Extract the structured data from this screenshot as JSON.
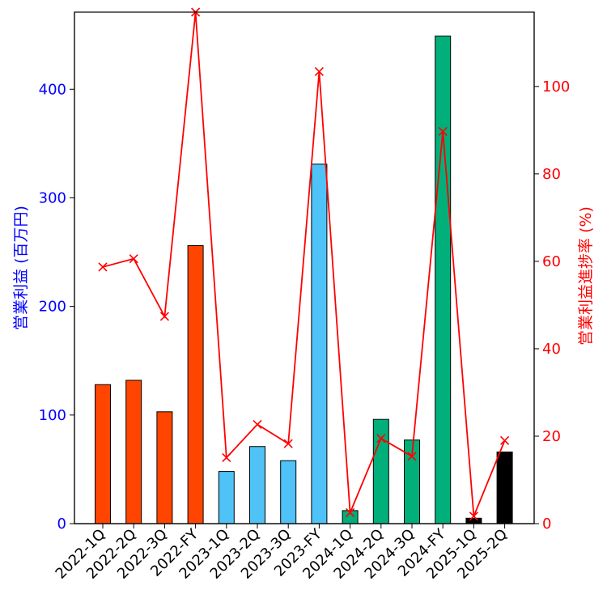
{
  "chart_data": {
    "type": "bar",
    "categories": [
      "2022-1Q",
      "2022-2Q",
      "2022-3Q",
      "2022-FY",
      "2023-1Q",
      "2023-2Q",
      "2023-3Q",
      "2023-FY",
      "2024-1Q",
      "2024-2Q",
      "2024-3Q",
      "2024-FY",
      "2025-1Q",
      "2025-2Q"
    ],
    "series": [
      {
        "axis": "left",
        "type": "bar",
        "values": [
          128,
          132,
          103,
          256,
          48,
          71,
          58,
          331,
          12,
          96,
          77,
          449,
          5,
          66
        ],
        "colors": [
          "#ff4500",
          "#ff4500",
          "#ff4500",
          "#ff4500",
          "#4fc3f7",
          "#4fc3f7",
          "#4fc3f7",
          "#4fc3f7",
          "#00af7a",
          "#00af7a",
          "#00af7a",
          "#00af7a",
          "#000000",
          "#000000"
        ]
      },
      {
        "axis": "right",
        "type": "line",
        "marker": "x",
        "color": "#ff0000",
        "values": [
          58.7,
          60.6,
          47.4,
          117.0,
          15.1,
          22.7,
          18.3,
          103.4,
          2.5,
          19.5,
          15.4,
          89.7,
          1.7,
          19.0
        ]
      }
    ],
    "ylabel": "営業利益 (百万円)",
    "ylabel_right": "営業利益進捗率 (%)",
    "ylim": [
      0,
      471
    ],
    "ylim_right": [
      0,
      117
    ],
    "yticks": [
      0,
      100,
      200,
      300,
      400
    ],
    "yticks_right": [
      0,
      20,
      40,
      60,
      80,
      100
    ],
    "left_axis_color": "#0000ff",
    "right_axis_color": "#ff0000",
    "legend": "none",
    "grid": false
  }
}
